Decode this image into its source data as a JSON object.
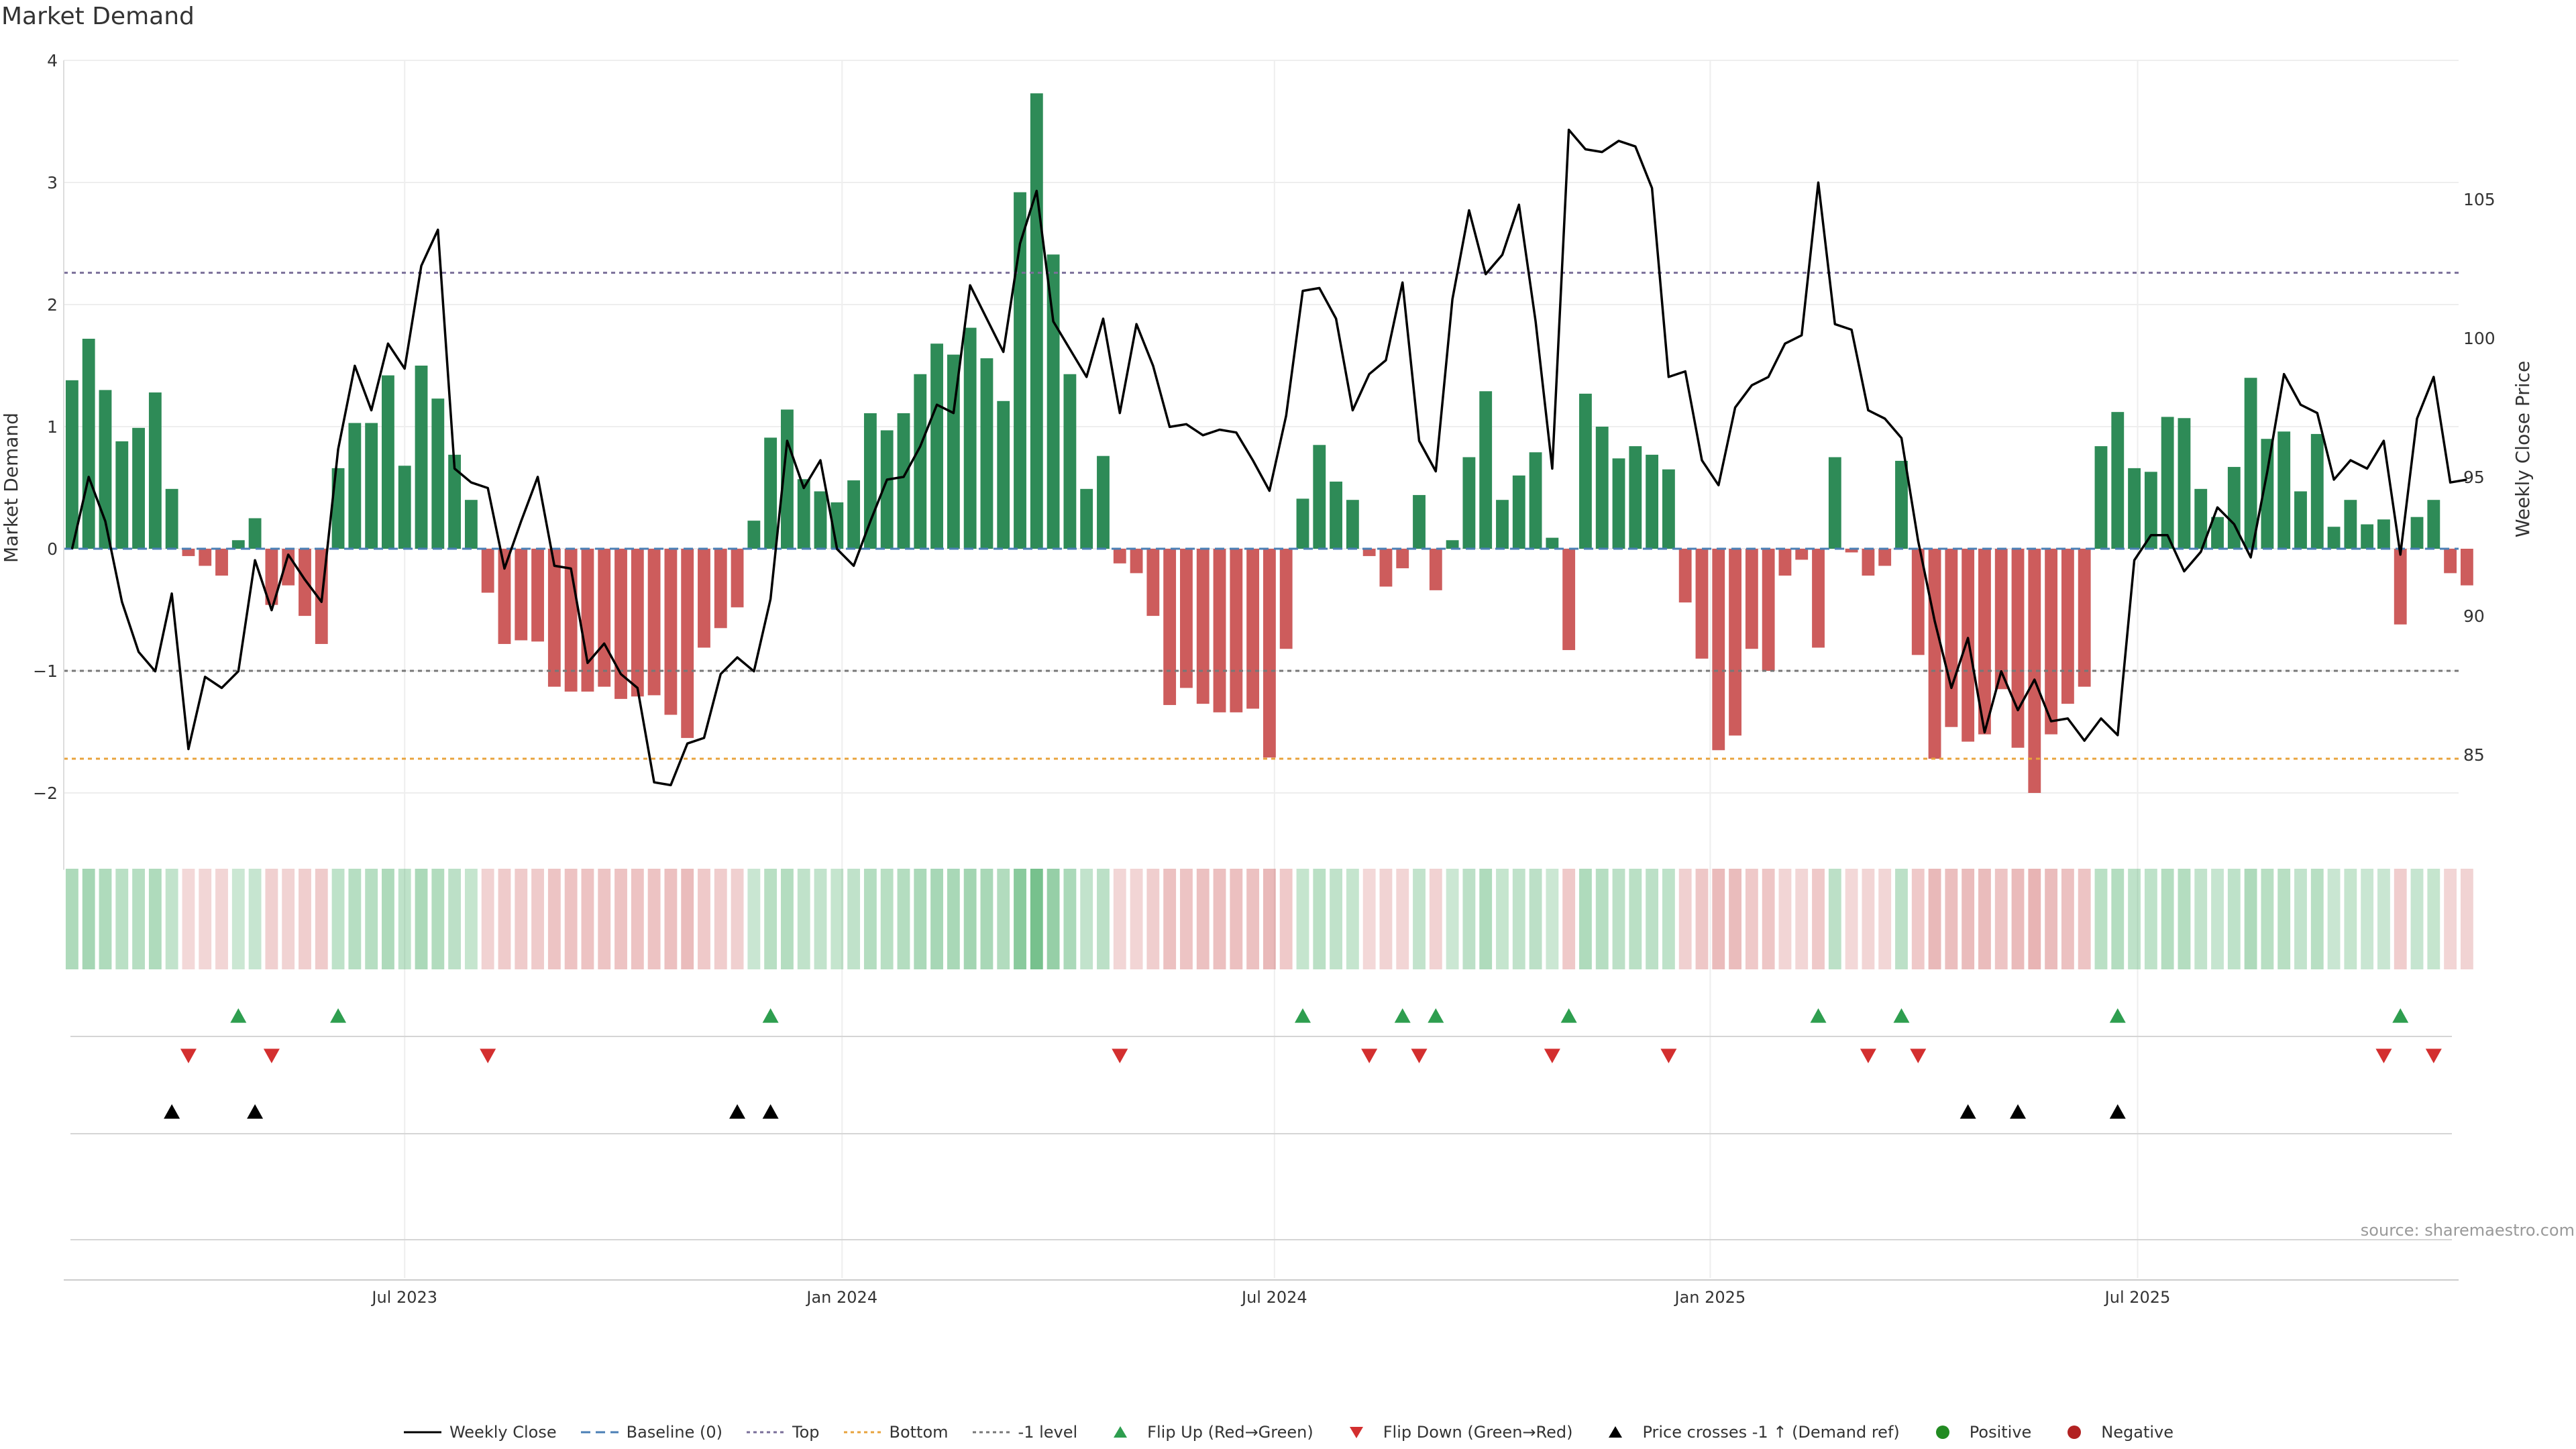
{
  "title": "Market Demand",
  "source": "source: sharemaestro.com",
  "colors": {
    "positive": "#2e8b57",
    "negative": "#cd5c5c",
    "price_line": "#000000",
    "top_line": "#7a6f99",
    "bottom_line": "#e8a33d",
    "minus1_line": "#777777",
    "baseline": "#4a7fb5",
    "flip_up": "#2e9e4f",
    "flip_down": "#d32f2f",
    "cross": "#000000"
  },
  "legend": [
    {
      "key": "weekly_close",
      "label": "Weekly Close"
    },
    {
      "key": "baseline",
      "label": "Baseline (0)"
    },
    {
      "key": "top",
      "label": "Top"
    },
    {
      "key": "bottom",
      "label": "Bottom"
    },
    {
      "key": "minus1",
      "label": "-1 level"
    },
    {
      "key": "flip_up",
      "label": "Flip Up (Red→Green)"
    },
    {
      "key": "flip_down",
      "label": "Flip Down (Green→Red)"
    },
    {
      "key": "cross",
      "label": "Price crosses -1 ↑ (Demand ref)"
    },
    {
      "key": "positive",
      "label": "Positive"
    },
    {
      "key": "negative",
      "label": "Negative"
    }
  ],
  "chart_data": {
    "type": "bar",
    "title": "Market Demand",
    "ylabel": "Market Demand",
    "y2label": "Weekly Close Price",
    "ylim": [
      -2.3,
      4.0
    ],
    "yticks": [
      4,
      3,
      2,
      1,
      0,
      -1,
      -2
    ],
    "ytick_labels": [
      "4",
      "3",
      "2",
      "1",
      "0",
      "−1",
      "−2"
    ],
    "y2lim": [
      82.3,
      110.0
    ],
    "y2ticks": [
      105,
      100,
      95,
      90,
      85
    ],
    "y2tick_labels": [
      "105",
      "100",
      "95",
      "90",
      "85"
    ],
    "top_level": 2.26,
    "bottom_level": -1.72,
    "minus1_level": -1.0,
    "xtick_labels": [
      "Jul 2023",
      "Jan 2024",
      "Jul 2024",
      "Jan 2025",
      "Jul 2025"
    ],
    "xtick_index": [
      20.5,
      46.8,
      72.8,
      99.0,
      124.7
    ],
    "weeks": 144,
    "demand": [
      1.38,
      1.72,
      1.3,
      0.88,
      0.99,
      1.28,
      0.49,
      -0.06,
      -0.14,
      -0.22,
      0.07,
      0.25,
      -0.46,
      -0.3,
      -0.55,
      -0.78,
      0.66,
      1.03,
      1.03,
      1.42,
      0.68,
      1.5,
      1.23,
      0.77,
      0.4,
      -0.36,
      -0.78,
      -0.75,
      -0.76,
      -1.13,
      -1.17,
      -1.17,
      -1.13,
      -1.23,
      -1.21,
      -1.2,
      -1.36,
      -1.55,
      -0.81,
      -0.65,
      -0.48,
      0.23,
      0.91,
      1.14,
      0.57,
      0.47,
      0.38,
      0.56,
      1.11,
      0.97,
      1.11,
      1.43,
      1.68,
      1.59,
      1.81,
      1.56,
      1.21,
      2.92,
      3.73,
      2.41,
      1.43,
      0.49,
      0.76,
      -0.12,
      -0.2,
      -0.55,
      -1.28,
      -1.14,
      -1.27,
      -1.34,
      -1.34,
      -1.31,
      -1.71,
      -0.82,
      0.41,
      0.85,
      0.55,
      0.4,
      -0.06,
      -0.31,
      -0.16,
      0.44,
      -0.34,
      0.07,
      0.75,
      1.29,
      0.4,
      0.6,
      0.79,
      0.09,
      -0.83,
      1.27,
      1.0,
      0.74,
      0.84,
      0.77,
      0.65,
      -0.44,
      -0.9,
      -1.65,
      -1.53,
      -0.82,
      -1.0,
      -0.22,
      -0.09,
      -0.81,
      0.75,
      -0.03,
      -0.22,
      -0.14,
      0.72,
      -0.87,
      -1.72,
      -1.46,
      -1.58,
      -1.52,
      -1.15,
      -1.63,
      -2.0,
      -1.52,
      -1.27,
      -1.13,
      0.84,
      1.12,
      0.66,
      0.63,
      1.08,
      1.07,
      0.49,
      0.26,
      0.67,
      1.4,
      0.9,
      0.96,
      0.47,
      0.94,
      0.18,
      0.4,
      0.2,
      0.24,
      -0.62,
      0.26,
      0.4,
      -0.2,
      -0.3
    ],
    "weekly_close": [
      92.4,
      95.0,
      93.4,
      90.5,
      88.7,
      88.0,
      90.8,
      85.2,
      87.8,
      87.4,
      88.0,
      92.0,
      90.2,
      92.2,
      91.3,
      90.5,
      96.0,
      99.0,
      97.4,
      99.8,
      98.9,
      102.6,
      103.9,
      95.3,
      94.8,
      94.6,
      91.7,
      93.4,
      95.0,
      91.8,
      91.7,
      88.3,
      89.0,
      87.9,
      87.4,
      84.0,
      83.9,
      85.4,
      85.6,
      87.9,
      88.5,
      88.0,
      90.6,
      96.3,
      94.6,
      95.6,
      92.4,
      91.8,
      93.4,
      94.9,
      95.0,
      96.1,
      97.6,
      97.3,
      101.9,
      100.7,
      99.5,
      103.4,
      105.3,
      100.6,
      99.6,
      98.6,
      100.7,
      97.3,
      100.5,
      99.0,
      96.8,
      96.9,
      96.5,
      96.7,
      96.6,
      95.6,
      94.5,
      97.2,
      101.7,
      101.8,
      100.7,
      97.4,
      98.7,
      99.2,
      102.0,
      96.3,
      95.2,
      101.4,
      104.6,
      102.3,
      103.0,
      104.8,
      100.6,
      95.3,
      107.5,
      106.8,
      106.7,
      107.1,
      106.9,
      105.4,
      98.6,
      98.8,
      95.6,
      94.7,
      97.5,
      98.3,
      98.6,
      99.8,
      100.1,
      105.6,
      100.5,
      100.3,
      97.4,
      97.1,
      96.4,
      92.7,
      89.8,
      87.4,
      89.2,
      85.8,
      88.0,
      86.6,
      87.7,
      86.2,
      86.3,
      85.5,
      86.3,
      85.7,
      92.0,
      92.9,
      92.9,
      91.6,
      92.3,
      93.9,
      93.3,
      92.1,
      95.2,
      98.7,
      97.6,
      97.3,
      94.9,
      95.6,
      95.3,
      96.3,
      92.2,
      97.1,
      98.6,
      94.8,
      94.9
    ],
    "heat_strip": "weekly demand intensity (same series)",
    "flip_up_weeks": [
      10,
      16,
      42,
      74,
      80,
      82,
      90,
      105,
      110,
      123,
      140
    ],
    "flip_down_weeks": [
      7,
      12,
      25,
      63,
      78,
      81,
      89,
      96,
      108,
      111,
      139,
      142
    ],
    "cross_weeks": [
      6,
      11,
      40,
      42,
      114,
      117,
      123
    ]
  }
}
